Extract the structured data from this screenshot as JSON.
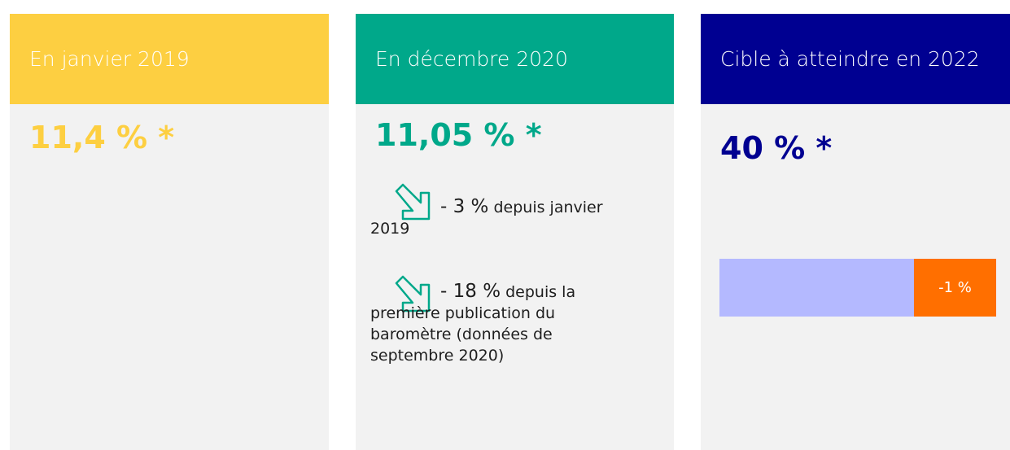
{
  "cards": [
    {
      "header": "En janvier 2019",
      "value": "11,4 % *"
    },
    {
      "header": "En décembre 2020",
      "value": "11,05 % *",
      "notes": [
        {
          "change": "- 3 %",
          "text": "depuis janvier 2019"
        },
        {
          "change": "- 18 %",
          "text": "depuis la première publication du baromètre (données de septembre 2020)"
        }
      ]
    },
    {
      "header": "Cible à atteindre en 2022",
      "value": "40 % *",
      "gauge_label": "-1 %"
    }
  ]
}
